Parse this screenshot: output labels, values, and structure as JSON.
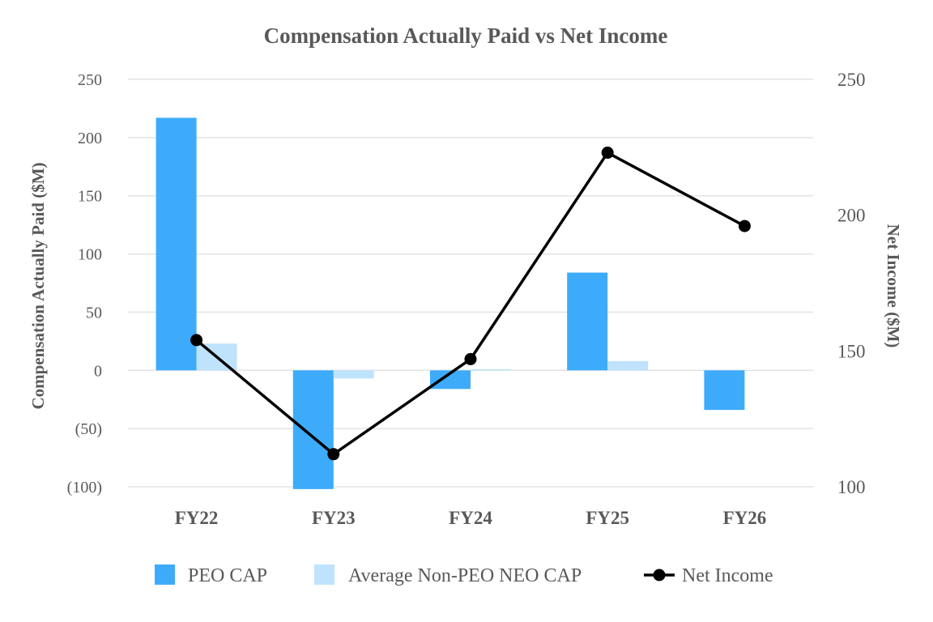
{
  "chart_data": {
    "type": "bar",
    "title": "Compensation Actually Paid vs Net Income",
    "categories": [
      "FY22",
      "FY23",
      "FY24",
      "FY25",
      "FY26"
    ],
    "series": [
      {
        "name": "PEO CAP",
        "type": "bar",
        "axis": "left",
        "color": "#3dabfa",
        "values": [
          217,
          -102,
          -16,
          84,
          -34
        ]
      },
      {
        "name": "Average Non-PEO NEO CAP",
        "type": "bar",
        "axis": "left",
        "color": "#bfe3fc",
        "values": [
          23,
          -7,
          1,
          8,
          0
        ]
      },
      {
        "name": "Net Income",
        "type": "line",
        "axis": "right",
        "color": "#000000",
        "values": [
          154,
          112,
          147,
          223,
          196
        ]
      }
    ],
    "ylabel": "Compensation Actually Paid ($M)",
    "y2label": "Net Income ($M)",
    "ylim": [
      -100,
      250
    ],
    "y2lim": [
      100,
      250
    ],
    "yticks": [
      {
        "value": 250,
        "label": "250"
      },
      {
        "value": 200,
        "label": "200"
      },
      {
        "value": 150,
        "label": "150"
      },
      {
        "value": 100,
        "label": "100"
      },
      {
        "value": 50,
        "label": "50"
      },
      {
        "value": 0,
        "label": "0"
      },
      {
        "value": -50,
        "label": "(50)"
      },
      {
        "value": -100,
        "label": "(100)"
      }
    ],
    "y2ticks": [
      {
        "value": 250,
        "label": "250"
      },
      {
        "value": 200,
        "label": "200"
      },
      {
        "value": 150,
        "label": "150"
      },
      {
        "value": 100,
        "label": "100"
      }
    ],
    "grid": true,
    "legend_position": "bottom"
  }
}
